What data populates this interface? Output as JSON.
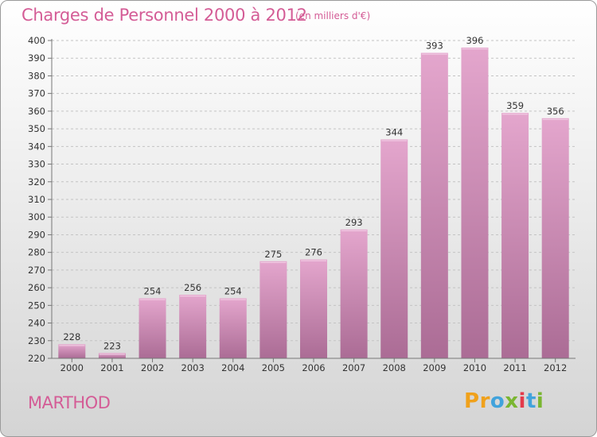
{
  "header": {
    "title": "Charges de Personnel 2000 à 2012",
    "unit": "(en milliers d'€)"
  },
  "footer": {
    "commune": "MARTHOD",
    "logo": [
      "P",
      "r",
      "o",
      "x",
      "i",
      "t",
      "i"
    ]
  },
  "colors": {
    "title": "#d45c96",
    "bar_top": "#e4a6cd",
    "bar_bottom": "#ab6c95",
    "logo": [
      "#f0a11b",
      "#f0a11b",
      "#41a3dc",
      "#7ab631",
      "#e33a4b",
      "#41a3dc",
      "#7ab631"
    ]
  },
  "chart_data": {
    "type": "bar",
    "title": "Charges de Personnel 2000 à 2012",
    "categories": [
      "2000",
      "2001",
      "2002",
      "2003",
      "2004",
      "2005",
      "2006",
      "2007",
      "2008",
      "2009",
      "2010",
      "2011",
      "2012"
    ],
    "values": [
      228,
      223,
      254,
      256,
      254,
      275,
      276,
      293,
      344,
      393,
      396,
      359,
      356
    ],
    "ylim": [
      220,
      400
    ],
    "yticks": [
      220,
      230,
      240,
      250,
      260,
      270,
      280,
      290,
      300,
      310,
      320,
      330,
      340,
      350,
      360,
      370,
      380,
      390,
      400
    ],
    "grid": true,
    "data_labels": true,
    "legend": "none"
  }
}
